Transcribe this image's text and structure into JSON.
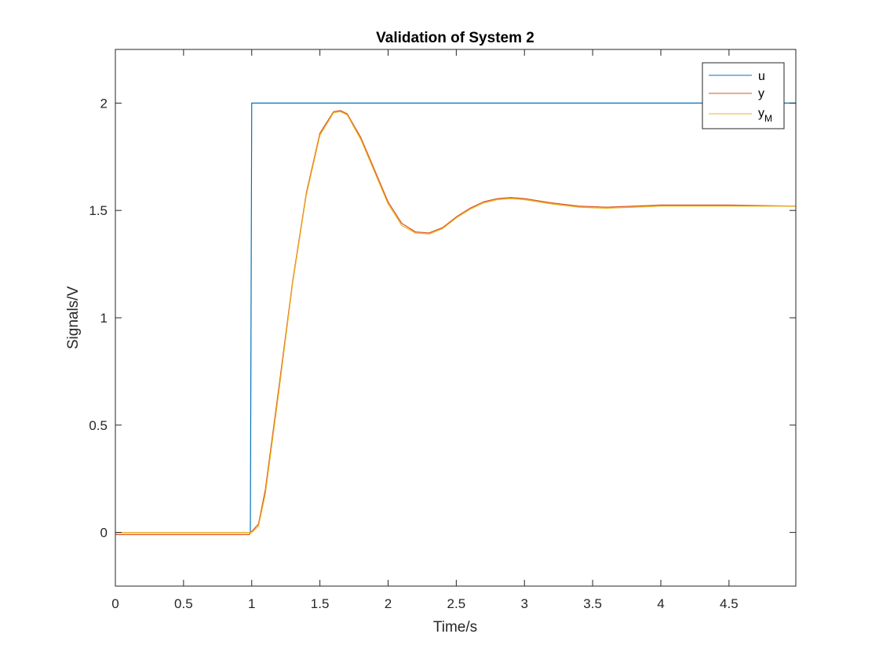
{
  "chart_data": {
    "type": "line",
    "title": "Validation of System 2",
    "xlabel": "Time/s",
    "ylabel": "Signals/V",
    "xlim": [
      0,
      4.99
    ],
    "ylim": [
      -0.25,
      2.25
    ],
    "xticks": [
      0,
      0.5,
      1,
      1.5,
      2,
      2.5,
      3,
      3.5,
      4,
      4.5
    ],
    "xtick_labels": [
      "0",
      "0.5",
      "1",
      "1.5",
      "2",
      "2.5",
      "3",
      "3.5",
      "4",
      "4.5"
    ],
    "yticks": [
      0,
      0.5,
      1,
      1.5,
      2
    ],
    "ytick_labels": [
      "0",
      "0.5",
      "1",
      "1.5",
      "2"
    ],
    "grid": false,
    "legend_position": "top-right",
    "series": [
      {
        "name": "u",
        "color": "#0072BD",
        "x": [
          0,
          0.99,
          1.0,
          4.99
        ],
        "y": [
          0,
          0,
          2,
          2
        ]
      },
      {
        "name": "y",
        "color": "#D95319",
        "x": [
          0,
          0.5,
          0.98,
          1.05,
          1.1,
          1.2,
          1.3,
          1.4,
          1.5,
          1.6,
          1.65,
          1.7,
          1.8,
          1.9,
          2.0,
          2.1,
          2.2,
          2.3,
          2.4,
          2.5,
          2.6,
          2.7,
          2.8,
          2.9,
          3.0,
          3.2,
          3.4,
          3.6,
          3.8,
          4.0,
          4.2,
          4.5,
          4.99
        ],
        "y": [
          -0.01,
          -0.01,
          -0.01,
          0.04,
          0.2,
          0.68,
          1.17,
          1.58,
          1.86,
          1.96,
          1.965,
          1.95,
          1.84,
          1.69,
          1.54,
          1.44,
          1.4,
          1.395,
          1.42,
          1.47,
          1.51,
          1.54,
          1.555,
          1.56,
          1.555,
          1.535,
          1.52,
          1.515,
          1.52,
          1.525,
          1.525,
          1.525,
          1.52
        ]
      },
      {
        "name": "y_M",
        "name_main": "y",
        "name_sub": "M",
        "color": "#EDB120",
        "x": [
          0,
          0.5,
          1.0,
          1.05,
          1.1,
          1.2,
          1.3,
          1.4,
          1.5,
          1.6,
          1.65,
          1.7,
          1.8,
          1.9,
          2.0,
          2.1,
          2.2,
          2.3,
          2.4,
          2.5,
          2.6,
          2.7,
          2.8,
          2.9,
          3.0,
          3.2,
          3.4,
          3.6,
          3.8,
          4.0,
          4.2,
          4.5,
          4.99
        ],
        "y": [
          0,
          0,
          0,
          0.03,
          0.18,
          0.66,
          1.16,
          1.57,
          1.85,
          1.955,
          1.96,
          1.945,
          1.83,
          1.68,
          1.53,
          1.43,
          1.395,
          1.39,
          1.415,
          1.465,
          1.505,
          1.535,
          1.55,
          1.555,
          1.55,
          1.53,
          1.515,
          1.51,
          1.515,
          1.52,
          1.52,
          1.52,
          1.52
        ]
      }
    ]
  }
}
